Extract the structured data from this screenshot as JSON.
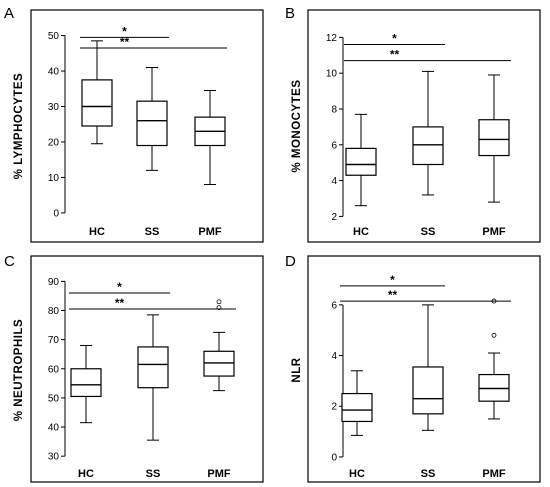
{
  "chart_data": [
    {
      "panel": "A",
      "type": "box",
      "categories": [
        "HC",
        "SS",
        "PMF"
      ],
      "ylabel": "% LYMPHOCYTES",
      "ylim": [
        -2,
        51
      ],
      "yticks": [
        0,
        10,
        20,
        30,
        40,
        50
      ],
      "boxes": [
        {
          "min": 19.5,
          "q1": 24.5,
          "median": 30,
          "q3": 37.5,
          "max": 48.5,
          "outliers": []
        },
        {
          "min": 12,
          "q1": 19,
          "median": 26,
          "q3": 31.5,
          "max": 41,
          "outliers": []
        },
        {
          "min": 8,
          "q1": 19,
          "median": 23,
          "q3": 27,
          "max": 34.5,
          "outliers": []
        }
      ],
      "significance": [
        {
          "from": 0,
          "to": 1,
          "label": "*",
          "y": 49.5
        },
        {
          "from": 0,
          "to": 2,
          "label": "**",
          "y": 46.5
        }
      ]
    },
    {
      "panel": "B",
      "type": "box",
      "categories": [
        "HC",
        "SS",
        "PMF"
      ],
      "ylabel": "% MONOCYTES",
      "ylim": [
        1.8,
        12.3
      ],
      "yticks": [
        2,
        4,
        6,
        8,
        10,
        12
      ],
      "boxes": [
        {
          "min": 2.6,
          "q1": 4.3,
          "median": 4.9,
          "q3": 5.8,
          "max": 7.7,
          "outliers": []
        },
        {
          "min": 3.2,
          "q1": 4.9,
          "median": 6.0,
          "q3": 7.0,
          "max": 10.1,
          "outliers": []
        },
        {
          "min": 2.8,
          "q1": 5.4,
          "median": 6.3,
          "q3": 7.4,
          "max": 9.9,
          "outliers": []
        }
      ],
      "significance": [
        {
          "from": 0,
          "to": 1,
          "label": "*",
          "y": 11.6
        },
        {
          "from": 0,
          "to": 2,
          "label": "**",
          "y": 10.7
        }
      ]
    },
    {
      "panel": "C",
      "type": "box",
      "categories": [
        "HC",
        "SS",
        "PMF"
      ],
      "ylabel": "% NEUTROPHILS",
      "ylim": [
        28,
        91.5
      ],
      "yticks": [
        30,
        40,
        50,
        60,
        70,
        80,
        90
      ],
      "boxes": [
        {
          "min": 41.5,
          "q1": 50.5,
          "median": 54.5,
          "q3": 60,
          "max": 68,
          "outliers": []
        },
        {
          "min": 35.5,
          "q1": 53.5,
          "median": 61.5,
          "q3": 67.5,
          "max": 78.5,
          "outliers": []
        },
        {
          "min": 52.5,
          "q1": 57.5,
          "median": 62,
          "q3": 66,
          "max": 72.5,
          "outliers": [
            81,
            83
          ]
        }
      ],
      "significance": [
        {
          "from": 0,
          "to": 1,
          "label": "*",
          "y": 86
        },
        {
          "from": 0,
          "to": 2,
          "label": "**",
          "y": 80.5
        }
      ]
    },
    {
      "panel": "D",
      "type": "box",
      "categories": [
        "HC",
        "SS",
        "PMF"
      ],
      "ylabel": "NLR",
      "ylim": [
        -0.2,
        7.1
      ],
      "yticks": [
        0,
        2,
        4,
        6
      ],
      "boxes": [
        {
          "min": 0.85,
          "q1": 1.4,
          "median": 1.85,
          "q3": 2.5,
          "max": 3.4,
          "outliers": []
        },
        {
          "min": 1.05,
          "q1": 1.7,
          "median": 2.3,
          "q3": 3.55,
          "max": 6.0,
          "outliers": []
        },
        {
          "min": 1.5,
          "q1": 2.2,
          "median": 2.7,
          "q3": 3.25,
          "max": 4.1,
          "outliers": [
            4.8,
            6.15
          ]
        }
      ],
      "significance": [
        {
          "from": 0,
          "to": 1,
          "label": "*",
          "y": 6.75
        },
        {
          "from": 0,
          "to": 2,
          "label": "**",
          "y": 6.15
        }
      ]
    }
  ]
}
